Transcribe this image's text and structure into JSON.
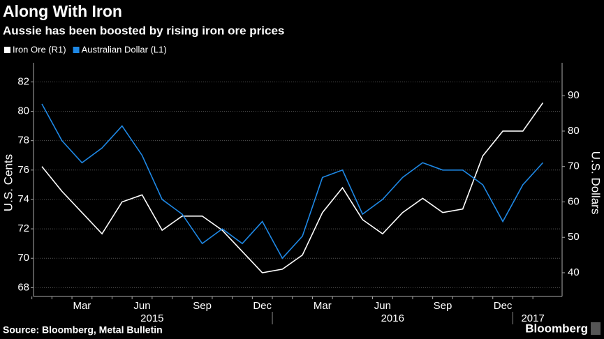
{
  "chart_data": {
    "type": "line",
    "title": "Along With Iron",
    "subtitle": "Aussie has been boosted by rising iron ore prices",
    "y_label": "U.S. Cents",
    "y2_label": "U.S. Dollars",
    "source": "Source: Bloomberg, Metal Bulletin",
    "brand": "Bloomberg",
    "categories": [
      null,
      null,
      "Mar",
      null,
      null,
      "Jun",
      null,
      null,
      "Sep",
      null,
      null,
      "Dec",
      null,
      null,
      "Mar",
      null,
      null,
      "Jun",
      null,
      null,
      "Sep",
      null,
      null,
      "Dec",
      null,
      null
    ],
    "year_labels": [
      "2015",
      "2016",
      "2017"
    ],
    "series": [
      {
        "name": "Iron Ore (R1)",
        "color": "#ffffff",
        "axis": "y2",
        "values": [
          70,
          63,
          57,
          51,
          60,
          62,
          52,
          56,
          56,
          52,
          46,
          40,
          41,
          45,
          57,
          64,
          55,
          51,
          57,
          61,
          57,
          58,
          73,
          80,
          80,
          88
        ]
      },
      {
        "name": "Australian Dollar (L1)",
        "color": "#1e88e5",
        "axis": "y",
        "values": [
          80.5,
          78,
          76.5,
          77.5,
          79,
          77,
          74,
          73,
          71,
          72,
          71,
          72.5,
          70,
          71.5,
          75.5,
          76,
          73,
          74,
          75.5,
          76.5,
          76,
          76,
          75,
          72.5,
          75,
          76.5
        ]
      }
    ],
    "ylim": [
      67.4,
      83.3
    ],
    "yticks": [
      68,
      70,
      72,
      74,
      76,
      78,
      80,
      82
    ],
    "y2lim": [
      33.3,
      99.3
    ],
    "y2ticks": [
      40,
      50,
      60,
      70,
      80,
      90
    ],
    "grid": true
  }
}
